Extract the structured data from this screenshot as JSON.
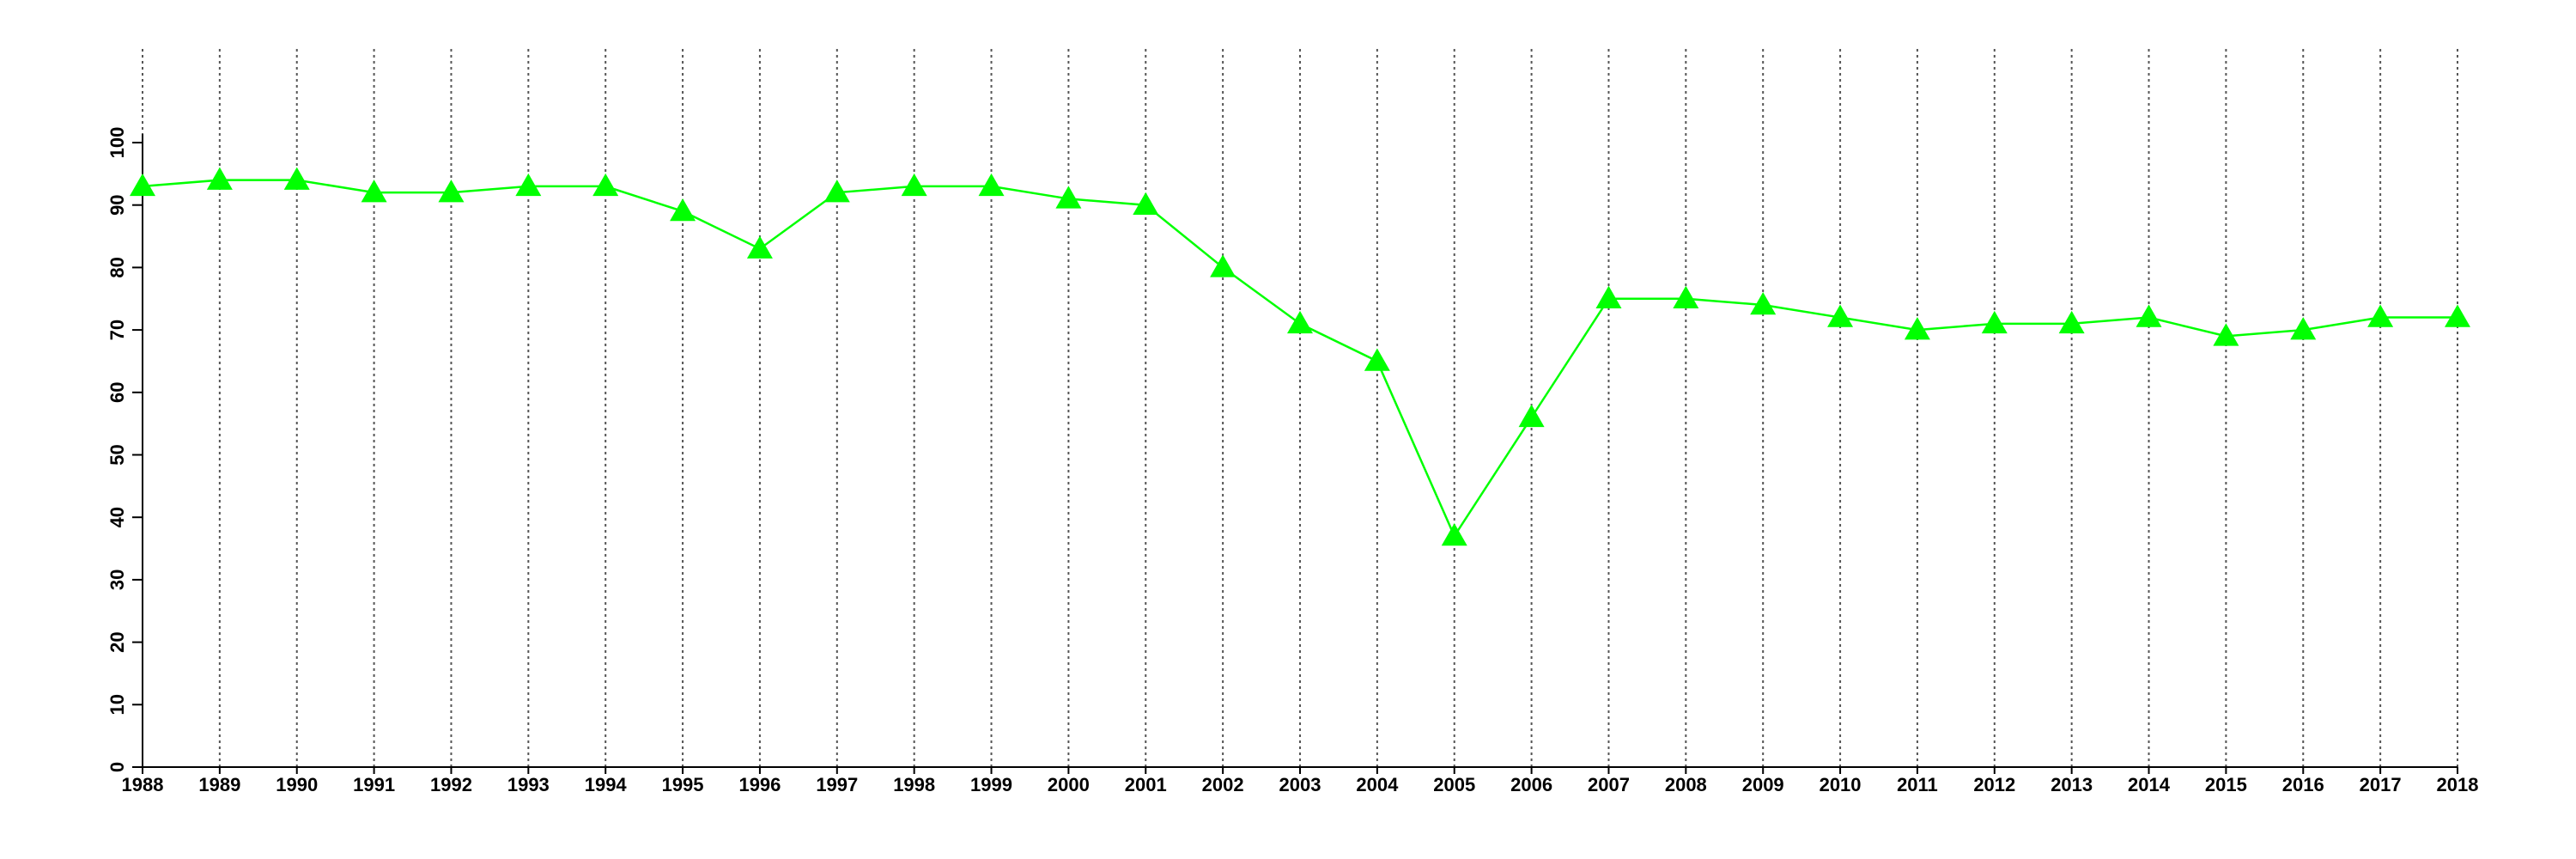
{
  "chart_data": {
    "type": "line",
    "x": [
      1988,
      1989,
      1990,
      1991,
      1992,
      1993,
      1994,
      1995,
      1996,
      1997,
      1998,
      1999,
      2000,
      2001,
      2002,
      2003,
      2004,
      2005,
      2006,
      2007,
      2008,
      2009,
      2010,
      2011,
      2012,
      2013,
      2014,
      2015,
      2016,
      2017,
      2018
    ],
    "values": [
      93,
      94,
      94,
      92,
      92,
      93,
      93,
      89,
      83,
      92,
      93,
      93,
      91,
      90,
      80,
      71,
      65,
      37,
      56,
      75,
      75,
      74,
      72,
      70,
      71,
      71,
      72,
      69,
      70,
      72,
      72
    ],
    "color": "#00ff00",
    "marker": "triangle",
    "xlim": [
      1988,
      2018
    ],
    "xticks": [
      1988,
      1989,
      1990,
      1991,
      1992,
      1993,
      1994,
      1995,
      1996,
      1997,
      1998,
      1999,
      2000,
      2001,
      2002,
      2003,
      2004,
      2005,
      2006,
      2007,
      2008,
      2009,
      2010,
      2011,
      2012,
      2013,
      2014,
      2015,
      2016,
      2017,
      2018
    ],
    "ylim": [
      0,
      100
    ],
    "yticks": [
      0,
      10,
      20,
      30,
      40,
      50,
      60,
      70,
      80,
      90,
      100
    ],
    "grid": "x"
  }
}
